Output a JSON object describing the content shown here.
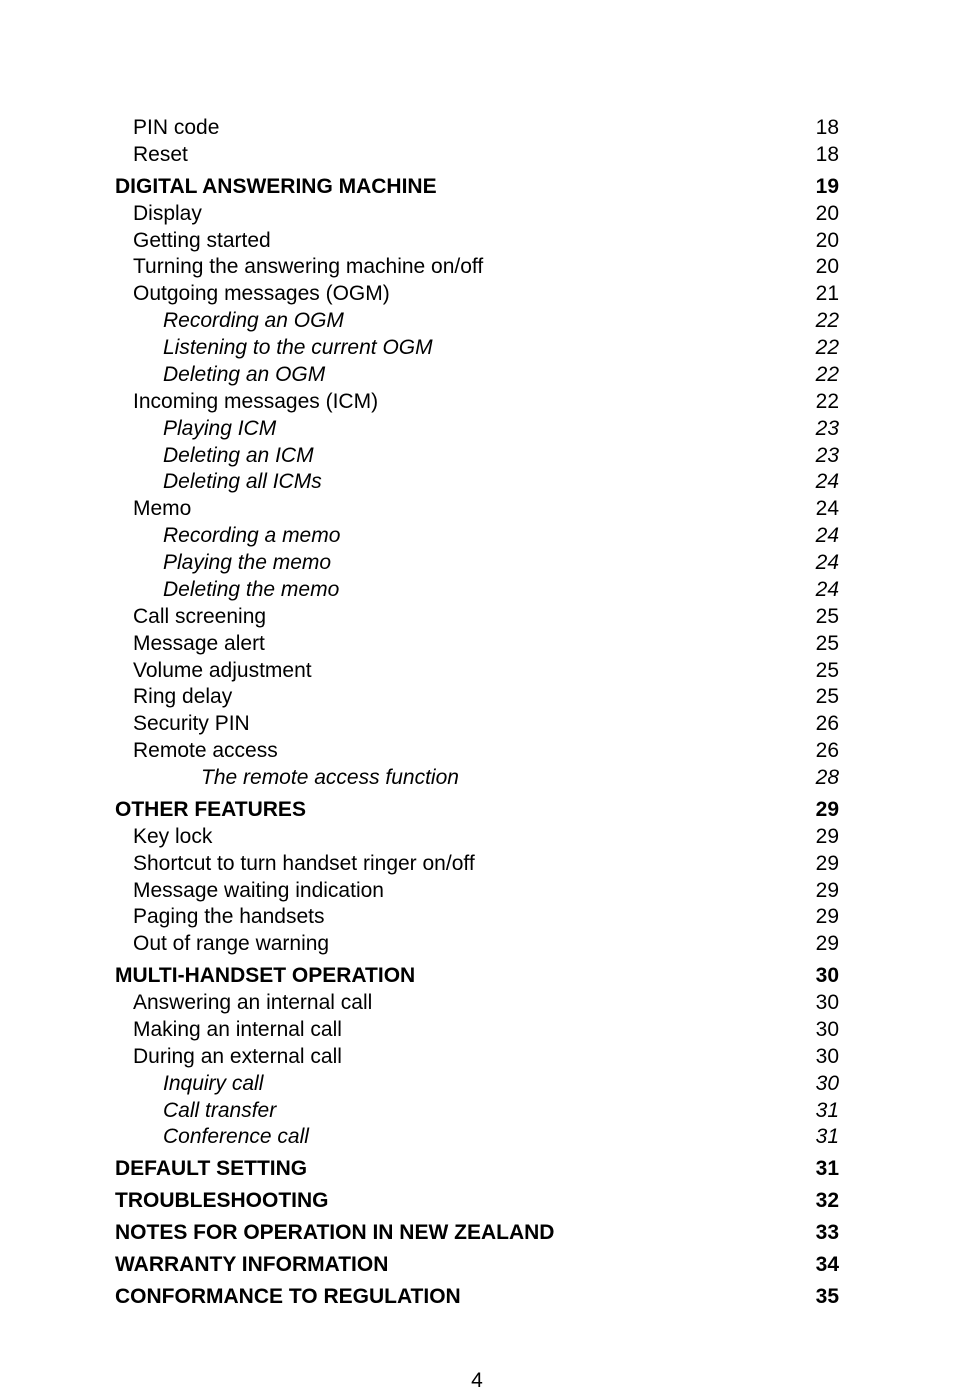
{
  "pageNumber": "4",
  "entries": [
    {
      "label": "PIN code ",
      "page": "18",
      "level": 1,
      "bold": false,
      "italic": false,
      "gap": false
    },
    {
      "label": "Reset",
      "page": "18",
      "level": 1,
      "bold": false,
      "italic": false,
      "gap": false
    },
    {
      "label": "DIGITAL ANSWERING MACHINE",
      "page": "19",
      "level": 0,
      "bold": true,
      "italic": false,
      "gap": true
    },
    {
      "label": "Display ",
      "page": "20",
      "level": 1,
      "bold": false,
      "italic": false,
      "gap": false
    },
    {
      "label": "Getting started",
      "page": "20",
      "level": 1,
      "bold": false,
      "italic": false,
      "gap": false
    },
    {
      "label": "Turning the answering machine on/off ",
      "page": "20",
      "level": 1,
      "bold": false,
      "italic": false,
      "gap": false
    },
    {
      "label": "Outgoing messages (OGM) ",
      "page": "21",
      "level": 1,
      "bold": false,
      "italic": false,
      "gap": false
    },
    {
      "label": "Recording an OGM ",
      "page": "22",
      "level": 2,
      "bold": false,
      "italic": true,
      "gap": false
    },
    {
      "label": "Listening to the current OGM ",
      "page": "22",
      "level": 2,
      "bold": false,
      "italic": true,
      "gap": false
    },
    {
      "label": "Deleting an OGM",
      "page": "22",
      "level": 2,
      "bold": false,
      "italic": true,
      "gap": false
    },
    {
      "label": "Incoming messages (ICM) ",
      "page": "22",
      "level": 1,
      "bold": false,
      "italic": false,
      "gap": false
    },
    {
      "label": "Playing ICM",
      "page": "23",
      "level": 2,
      "bold": false,
      "italic": true,
      "gap": false
    },
    {
      "label": "Deleting an ICM",
      "page": "23",
      "level": 2,
      "bold": false,
      "italic": true,
      "gap": false
    },
    {
      "label": "Deleting all ICMs ",
      "page": "24",
      "level": 2,
      "bold": false,
      "italic": true,
      "gap": false
    },
    {
      "label": "Memo ",
      "page": "24",
      "level": 1,
      "bold": false,
      "italic": false,
      "gap": false
    },
    {
      "label": "Recording a memo ",
      "page": "24",
      "level": 2,
      "bold": false,
      "italic": true,
      "gap": false
    },
    {
      "label": "Playing the memo",
      "page": "24",
      "level": 2,
      "bold": false,
      "italic": true,
      "gap": false
    },
    {
      "label": "Deleting the memo ",
      "page": "24",
      "level": 2,
      "bold": false,
      "italic": true,
      "gap": false
    },
    {
      "label": "Call screening ",
      "page": "25",
      "level": 1,
      "bold": false,
      "italic": false,
      "gap": false
    },
    {
      "label": "Message alert",
      "page": "25",
      "level": 1,
      "bold": false,
      "italic": false,
      "gap": false
    },
    {
      "label": "Volume adjustment ",
      "page": "25",
      "level": 1,
      "bold": false,
      "italic": false,
      "gap": false
    },
    {
      "label": "Ring delay ",
      "page": "25",
      "level": 1,
      "bold": false,
      "italic": false,
      "gap": false
    },
    {
      "label": "Security PIN ",
      "page": "26",
      "level": 1,
      "bold": false,
      "italic": false,
      "gap": false
    },
    {
      "label": "Remote access ",
      "page": "26",
      "level": 1,
      "bold": false,
      "italic": false,
      "gap": false
    },
    {
      "label": "The remote access function ",
      "page": "28",
      "level": 3,
      "bold": false,
      "italic": true,
      "gap": false
    },
    {
      "label": "OTHER FEATURES ",
      "page": "29",
      "level": 0,
      "bold": true,
      "italic": false,
      "gap": true
    },
    {
      "label": "Key lock",
      "page": "29",
      "level": 1,
      "bold": false,
      "italic": false,
      "gap": false
    },
    {
      "label": "Shortcut to turn handset ringer on/off",
      "page": "29",
      "level": 1,
      "bold": false,
      "italic": false,
      "gap": false
    },
    {
      "label": "Message waiting indication ",
      "page": "29",
      "level": 1,
      "bold": false,
      "italic": false,
      "gap": false
    },
    {
      "label": "Paging the handsets ",
      "page": "29",
      "level": 1,
      "bold": false,
      "italic": false,
      "gap": false
    },
    {
      "label": "Out of range warning",
      "page": "29",
      "level": 1,
      "bold": false,
      "italic": false,
      "gap": false
    },
    {
      "label": "MULTI-HANDSET OPERATION ",
      "page": "30",
      "level": 0,
      "bold": true,
      "italic": false,
      "gap": true
    },
    {
      "label": "Answering an internal call ",
      "page": "30",
      "level": 1,
      "bold": false,
      "italic": false,
      "gap": false
    },
    {
      "label": "Making an internal call ",
      "page": "30",
      "level": 1,
      "bold": false,
      "italic": false,
      "gap": false
    },
    {
      "label": "During an external call ",
      "page": "30",
      "level": 1,
      "bold": false,
      "italic": false,
      "gap": false
    },
    {
      "label": "Inquiry call ",
      "page": "30",
      "level": 2,
      "bold": false,
      "italic": true,
      "gap": false
    },
    {
      "label": "Call transfer",
      "page": "31",
      "level": 2,
      "bold": false,
      "italic": true,
      "gap": false
    },
    {
      "label": "Conference call ",
      "page": "31",
      "level": 2,
      "bold": false,
      "italic": true,
      "gap": false
    },
    {
      "label": "DEFAULT SETTING",
      "page": "31",
      "level": 0,
      "bold": true,
      "italic": false,
      "gap": true
    },
    {
      "label": "TROUBLESHOOTING",
      "page": "32",
      "level": 0,
      "bold": true,
      "italic": false,
      "gap": true
    },
    {
      "label": "NOTES FOR OPERATION IN NEW ZEALAND ",
      "page": "33",
      "level": 0,
      "bold": true,
      "italic": false,
      "gap": true
    },
    {
      "label": "WARRANTY INFORMATION ",
      "page": "34",
      "level": 0,
      "bold": true,
      "italic": false,
      "gap": true
    },
    {
      "label": "CONFORMANCE TO REGULATION",
      "page": "35",
      "level": 0,
      "bold": true,
      "italic": false,
      "gap": true
    }
  ]
}
